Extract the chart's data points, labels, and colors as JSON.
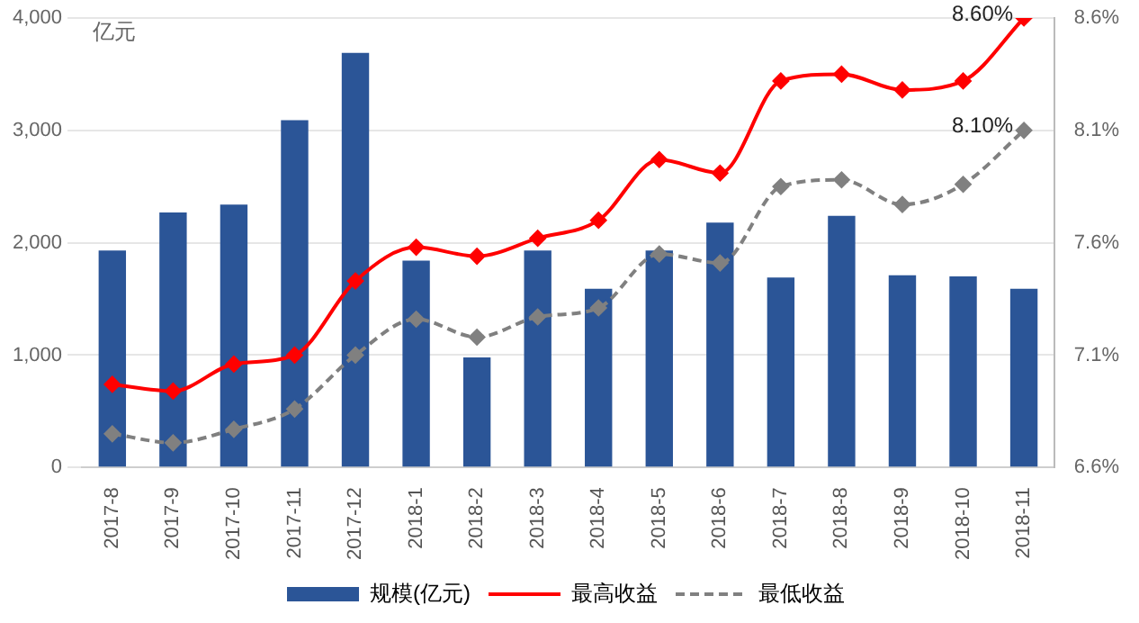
{
  "chart_data": {
    "type": "bar",
    "ylabel": "亿元",
    "categories": [
      "2017-8",
      "2017-9",
      "2017-10",
      "2017-11",
      "2017-12",
      "2018-1",
      "2018-2",
      "2018-3",
      "2018-4",
      "2018-5",
      "2018-6",
      "2018-7",
      "2018-8",
      "2018-9",
      "2018-10",
      "2018-11"
    ],
    "series": [
      {
        "name": "规模(亿元)",
        "color": "#2b5597",
        "values": [
          1930,
          2270,
          2340,
          3090,
          3690,
          1840,
          980,
          1930,
          1590,
          1930,
          2180,
          1690,
          2240,
          1710,
          1700,
          1590
        ]
      },
      {
        "name": "最高收益",
        "type": "line",
        "axis": "y2",
        "color": "#ff0000",
        "marker": "diamond",
        "line_style": "solid",
        "values": [
          6.97,
          6.94,
          7.06,
          7.1,
          7.43,
          7.58,
          7.54,
          7.62,
          7.7,
          7.97,
          7.91,
          8.32,
          8.35,
          8.28,
          8.32,
          8.6
        ],
        "value_labels": [
          null,
          null,
          null,
          null,
          null,
          null,
          null,
          null,
          null,
          null,
          null,
          null,
          null,
          null,
          null,
          "8.60%"
        ]
      },
      {
        "name": "最低收益",
        "type": "line",
        "axis": "y2",
        "color": "#808080",
        "marker": "diamond",
        "line_style": "dashed",
        "values": [
          6.75,
          6.71,
          6.77,
          6.86,
          7.1,
          7.26,
          7.18,
          7.27,
          7.31,
          7.55,
          7.51,
          7.85,
          7.88,
          7.77,
          7.86,
          8.1
        ],
        "value_labels": [
          null,
          null,
          null,
          null,
          null,
          null,
          null,
          null,
          null,
          null,
          null,
          null,
          null,
          null,
          null,
          "8.10%"
        ]
      }
    ],
    "ylim": [
      0,
      4000
    ],
    "yticks": [
      0,
      {
        "value": 1000,
        "label": "1,000"
      },
      {
        "value": 2000,
        "label": "2,000"
      },
      {
        "value": 3000,
        "label": "3,000"
      },
      {
        "value": 4000,
        "label": "4,000"
      }
    ],
    "y2lim": [
      6.6,
      8.6
    ],
    "y2ticks": [
      {
        "value": 6.6,
        "label": "6.6%"
      },
      {
        "value": 7.1,
        "label": "7.1%"
      },
      {
        "value": 7.6,
        "label": "7.6%"
      },
      {
        "value": 8.1,
        "label": "8.1%"
      },
      {
        "value": 8.6,
        "label": "8.6%"
      }
    ],
    "grid": "y",
    "legend": "bottom"
  }
}
